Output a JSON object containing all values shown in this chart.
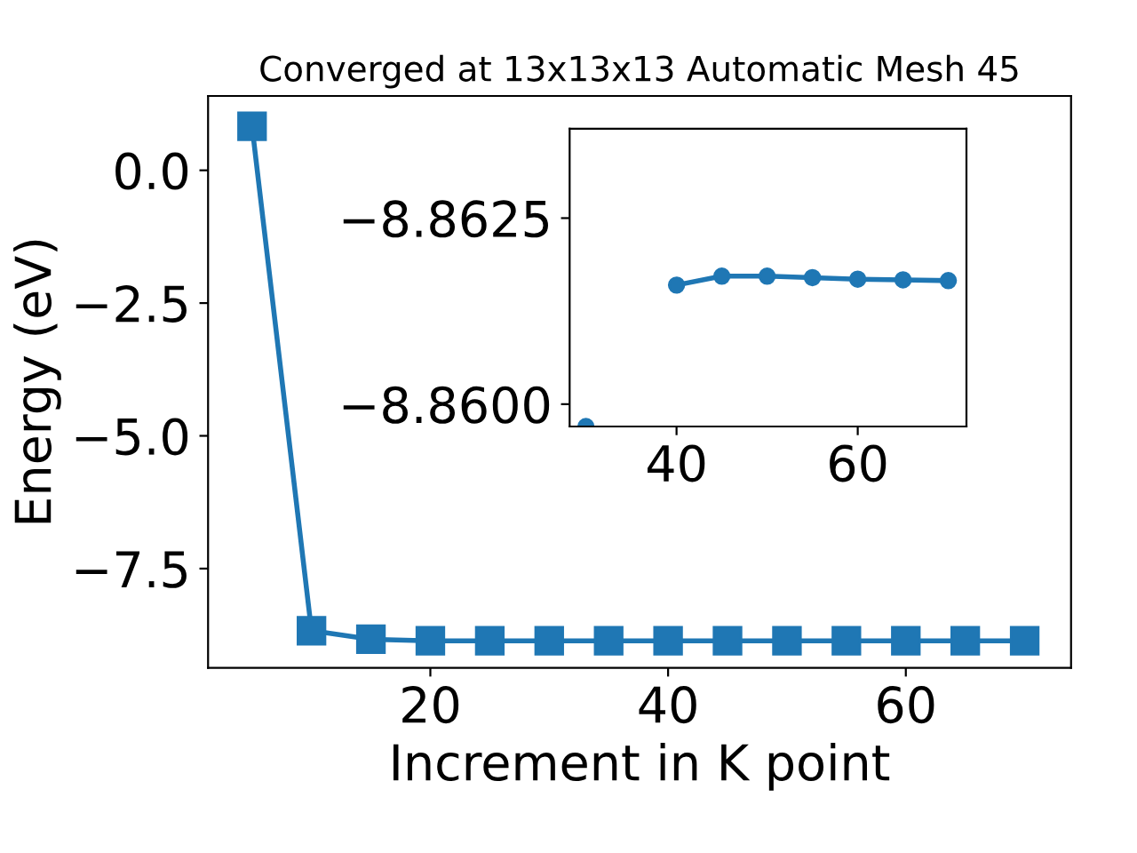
{
  "chart_data": [
    {
      "type": "line",
      "title": "Converged at 13x13x13 Automatic Mesh 45",
      "xlabel": "Increment in K point",
      "ylabel": "Energy (eV)",
      "marker": "square",
      "line_style": "solid",
      "grid": false,
      "legend": false,
      "x": [
        5,
        10,
        15,
        20,
        25,
        30,
        35,
        40,
        45,
        50,
        55,
        60,
        65,
        70
      ],
      "series": [
        {
          "color": "#1f77b4",
          "values": [
            0.83,
            -8.67,
            -8.83,
            -8.86,
            -8.86,
            -8.86,
            -8.86,
            -8.86,
            -8.86,
            -8.86,
            -8.86,
            -8.86,
            -8.86,
            -8.86
          ]
        }
      ],
      "xlim": [
        1.3,
        73.9
      ],
      "ylim": [
        -9.37,
        1.4
      ],
      "xticks": [
        20,
        40,
        60
      ],
      "yticks": [
        {
          "value": 0,
          "label": "0.0"
        },
        -2.5,
        {
          "value": -5,
          "label": "−5.0"
        },
        -7.5
      ]
    },
    {
      "type": "line",
      "marker": "circle",
      "line_style": "solid",
      "grid": false,
      "legend": false,
      "x": [
        30,
        35,
        40,
        45,
        50,
        55,
        60,
        65,
        70
      ],
      "series": [
        {
          "color": "#1f77b4",
          "values": [
            -8.8597,
            null,
            -8.8616,
            -8.86172,
            -8.86172,
            -8.8617,
            -8.86168,
            -8.86167,
            -8.86166
          ]
        }
      ],
      "xlim": [
        28.2,
        72.0
      ],
      "ylim": [
        -8.8597,
        -8.8637
      ],
      "xticks": [
        40,
        60
      ],
      "yticks": [
        -8.8625,
        {
          "value": -8.86,
          "label": "−8.8600"
        }
      ]
    }
  ]
}
